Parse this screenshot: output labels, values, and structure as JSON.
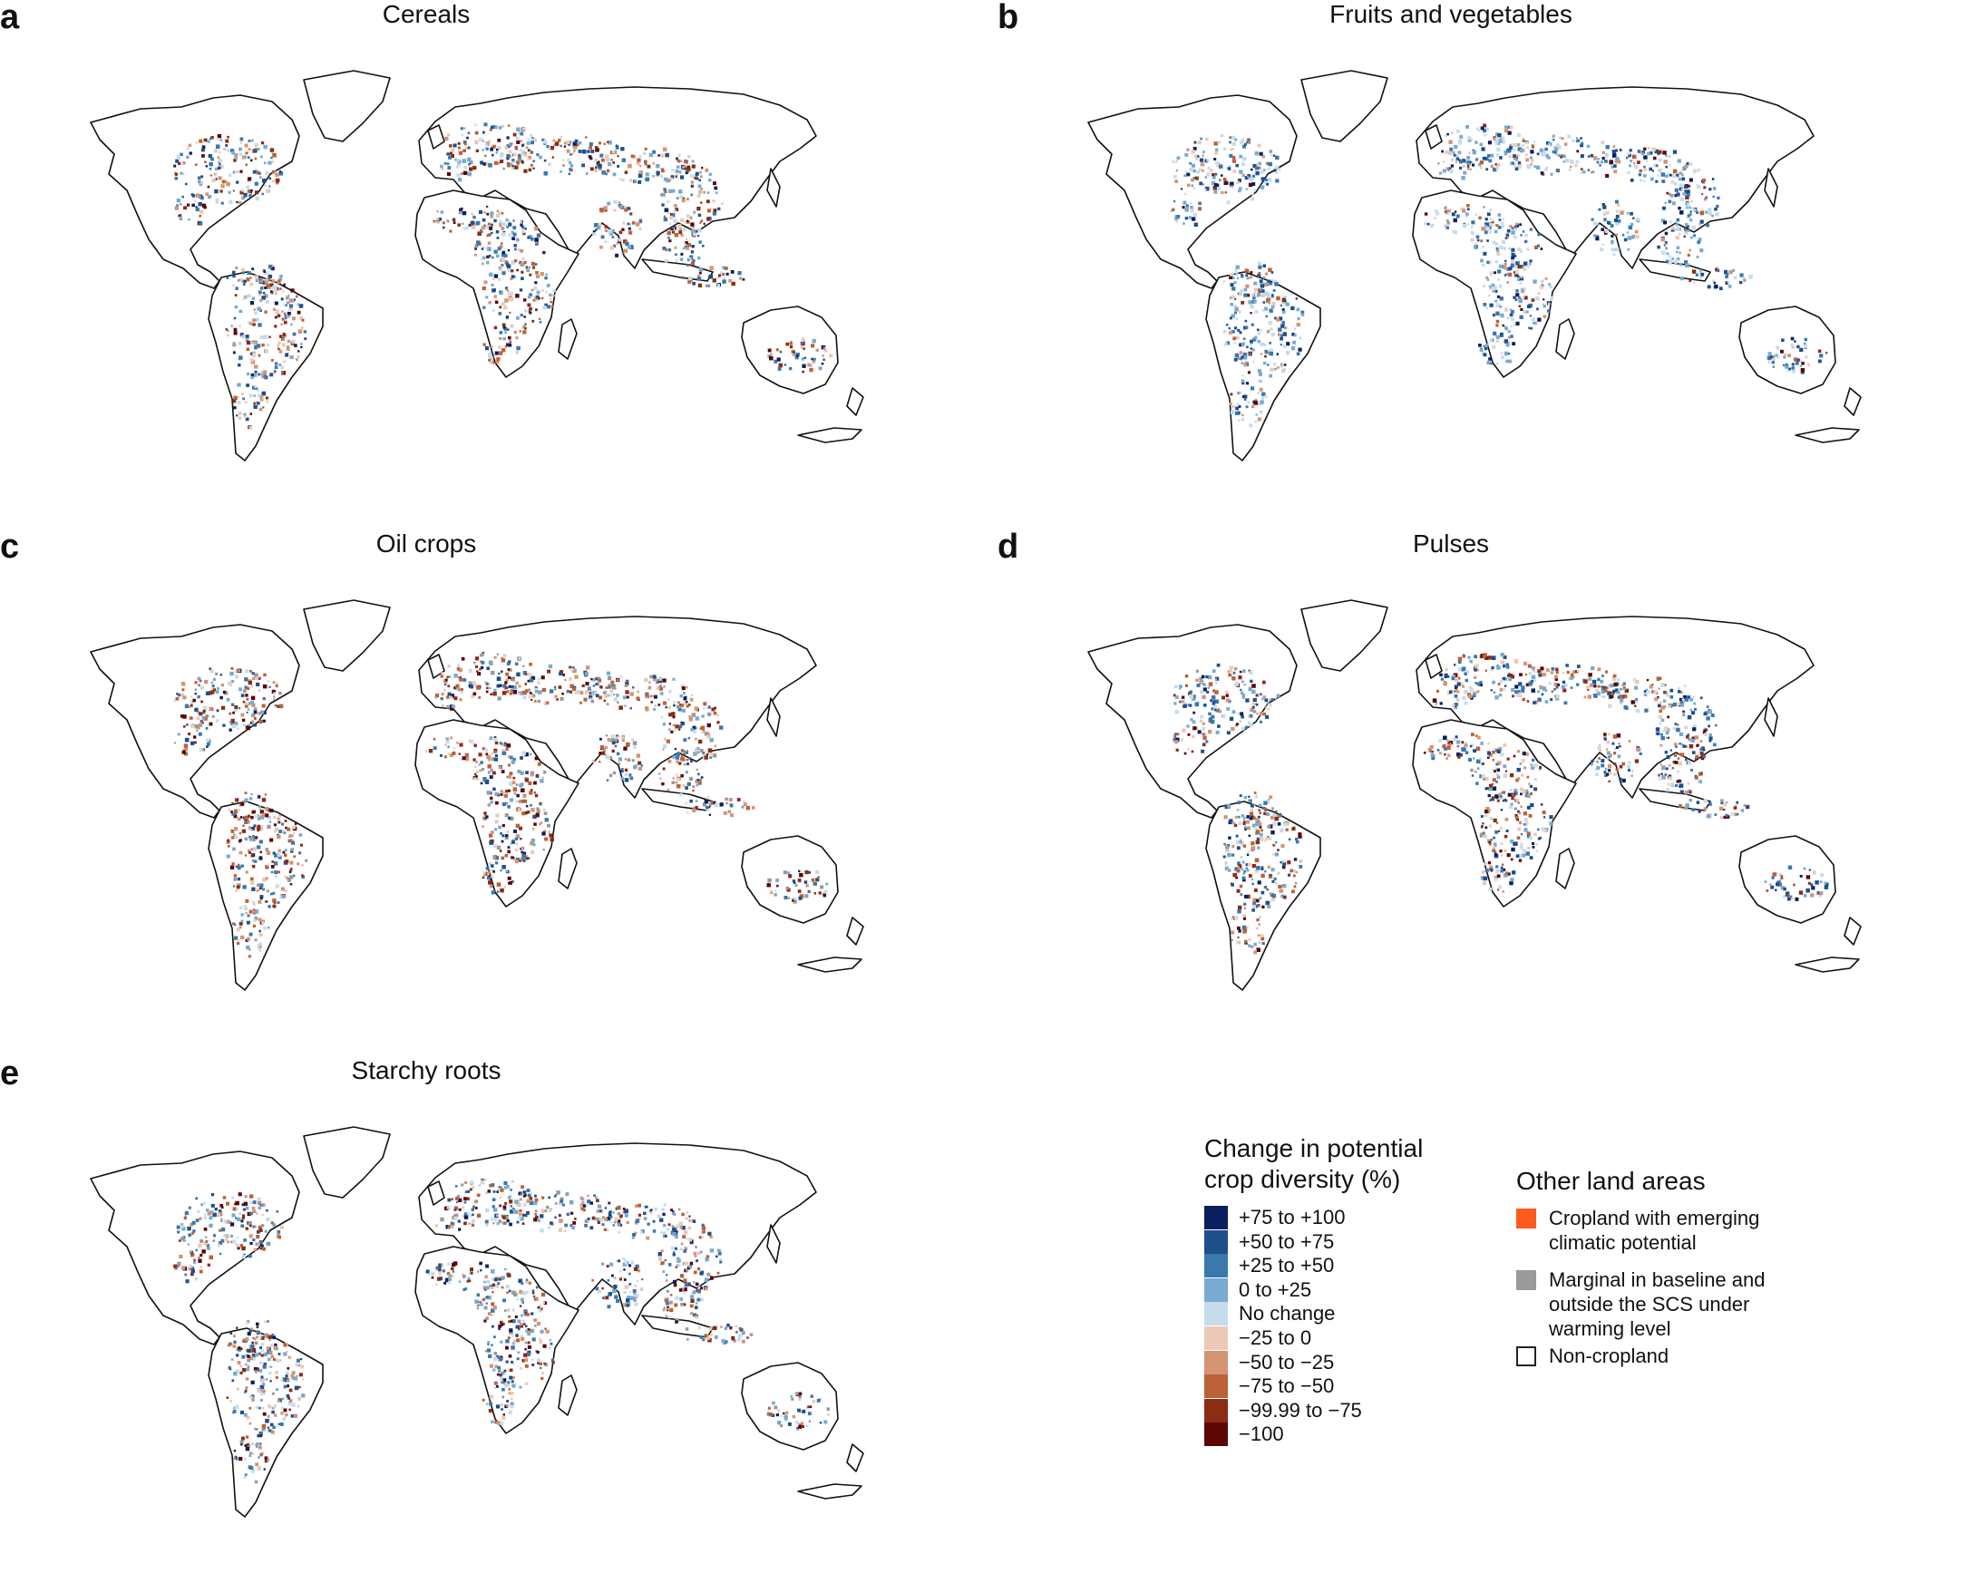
{
  "panels": [
    {
      "letter": "a",
      "title": "Cereals"
    },
    {
      "letter": "b",
      "title": "Fruits and vegetables"
    },
    {
      "letter": "c",
      "title": "Oil crops"
    },
    {
      "letter": "d",
      "title": "Pulses"
    },
    {
      "letter": "e",
      "title": "Starchy roots"
    }
  ],
  "legend": {
    "title_line1": "Change in potential",
    "title_line2": "crop diversity (%)",
    "items": [
      {
        "label": "+75 to +100",
        "color": "#0b1f5e"
      },
      {
        "label": "+50 to +75",
        "color": "#1d4f8c"
      },
      {
        "label": "+25 to +50",
        "color": "#3a78ad"
      },
      {
        "label": "0 to +25",
        "color": "#79aad1"
      },
      {
        "label": "No change",
        "color": "#c7dcea"
      },
      {
        "label": "−25 to 0",
        "color": "#ecc9b6"
      },
      {
        "label": "−50 to −25",
        "color": "#d39574"
      },
      {
        "label": "−75 to −50",
        "color": "#bb6137"
      },
      {
        "label": "−99.99 to −75",
        "color": "#8c2c12"
      },
      {
        "label": "−100",
        "color": "#5c0608"
      }
    ]
  },
  "other": {
    "title": "Other land areas",
    "items": [
      {
        "label_lines": [
          "Cropland with emerging",
          "climatic potential"
        ],
        "color": "#ff5a1f"
      },
      {
        "label_lines": [
          "Marginal in baseline and",
          "outside the SCS under",
          "warming level"
        ],
        "color": "#999999"
      },
      {
        "label_lines": [
          "Non-cropland"
        ],
        "color": "#ffffff"
      }
    ]
  },
  "colors": {
    "outline": "#111111",
    "land": "#ffffff"
  }
}
